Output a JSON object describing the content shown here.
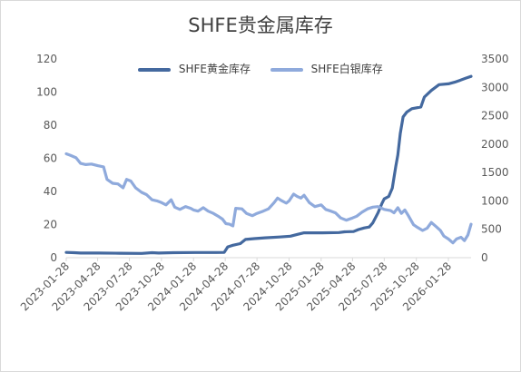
{
  "chart_data": {
    "type": "line",
    "title": "SHFE贵金属库存",
    "xlabel": "",
    "ylabel": "",
    "x_ticks": [
      "2023-01-28",
      "2023-04-28",
      "2023-07-28",
      "2023-10-28",
      "2024-01-28",
      "2024-04-28",
      "2024-07-28",
      "2024-10-28",
      "2025-01-28",
      "2025-04-28",
      "2025-07-28",
      "2025-10-28",
      "2026-01-28"
    ],
    "x_range": [
      "2023-01-28",
      "2026-04-03"
    ],
    "y_left": {
      "ticks": [
        0,
        20,
        40,
        60,
        80,
        100,
        120
      ],
      "range": [
        0,
        120
      ]
    },
    "y_right": {
      "ticks": [
        0,
        500,
        1000,
        1500,
        2000,
        2500,
        3000,
        3500
      ],
      "range": [
        0,
        3500
      ]
    },
    "grid": false,
    "legend_position": "top",
    "series": [
      {
        "name": "SHFE黄金库存",
        "axis": "left",
        "color": "#44699f",
        "points": [
          [
            "2023-01-28",
            3.2
          ],
          [
            "2023-02-20",
            3.0
          ],
          [
            "2023-03-10",
            2.8
          ],
          [
            "2023-05-01",
            2.8
          ],
          [
            "2023-07-01",
            2.7
          ],
          [
            "2023-09-01",
            2.6
          ],
          [
            "2023-10-01",
            3.0
          ],
          [
            "2023-10-20",
            2.8
          ],
          [
            "2023-12-01",
            3.0
          ],
          [
            "2024-02-01",
            3.1
          ],
          [
            "2024-04-01",
            3.1
          ],
          [
            "2024-04-25",
            3.2
          ],
          [
            "2024-05-05",
            6.5
          ],
          [
            "2024-05-20",
            7.5
          ],
          [
            "2024-06-10",
            8.5
          ],
          [
            "2024-06-25",
            11.0
          ],
          [
            "2024-07-20",
            11.5
          ],
          [
            "2024-08-20",
            12.0
          ],
          [
            "2024-10-01",
            12.5
          ],
          [
            "2024-11-01",
            13.0
          ],
          [
            "2024-11-20",
            14.0
          ],
          [
            "2024-12-10",
            15.0
          ],
          [
            "2025-02-01",
            15.0
          ],
          [
            "2025-03-20",
            15.2
          ],
          [
            "2025-04-05",
            15.6
          ],
          [
            "2025-05-01",
            15.8
          ],
          [
            "2025-05-15",
            17.0
          ],
          [
            "2025-06-01",
            18.0
          ],
          [
            "2025-06-15",
            18.5
          ],
          [
            "2025-06-25",
            21.0
          ],
          [
            "2025-07-10",
            27.0
          ],
          [
            "2025-07-22",
            33.0
          ],
          [
            "2025-07-28",
            35.5
          ],
          [
            "2025-08-10",
            37.0
          ],
          [
            "2025-08-20",
            42.0
          ],
          [
            "2025-08-30",
            55.0
          ],
          [
            "2025-09-05",
            62.0
          ],
          [
            "2025-09-12",
            75.0
          ],
          [
            "2025-09-20",
            85.0
          ],
          [
            "2025-10-01",
            88.0
          ],
          [
            "2025-10-15",
            90.0
          ],
          [
            "2025-11-10",
            91.0
          ],
          [
            "2025-11-20",
            97.0
          ],
          [
            "2025-12-10",
            101.0
          ],
          [
            "2026-01-01",
            104.5
          ],
          [
            "2026-01-28",
            105.0
          ],
          [
            "2026-02-15",
            106.0
          ],
          [
            "2026-03-01",
            107.0
          ],
          [
            "2026-03-20",
            108.5
          ],
          [
            "2026-04-03",
            109.5
          ]
        ]
      },
      {
        "name": "SHFE白银库存",
        "axis": "right",
        "color": "#8faadc",
        "points": [
          [
            "2023-01-28",
            1830
          ],
          [
            "2023-02-10",
            1800
          ],
          [
            "2023-02-25",
            1760
          ],
          [
            "2023-03-10",
            1660
          ],
          [
            "2023-03-25",
            1640
          ],
          [
            "2023-04-10",
            1650
          ],
          [
            "2023-04-28",
            1620
          ],
          [
            "2023-05-15",
            1600
          ],
          [
            "2023-05-25",
            1380
          ],
          [
            "2023-06-10",
            1310
          ],
          [
            "2023-06-25",
            1300
          ],
          [
            "2023-07-10",
            1230
          ],
          [
            "2023-07-20",
            1380
          ],
          [
            "2023-08-01",
            1350
          ],
          [
            "2023-08-15",
            1230
          ],
          [
            "2023-09-01",
            1150
          ],
          [
            "2023-09-15",
            1110
          ],
          [
            "2023-10-01",
            1020
          ],
          [
            "2023-10-15",
            1000
          ],
          [
            "2023-10-28",
            970
          ],
          [
            "2023-11-10",
            930
          ],
          [
            "2023-11-25",
            1020
          ],
          [
            "2023-12-05",
            890
          ],
          [
            "2023-12-20",
            850
          ],
          [
            "2024-01-05",
            900
          ],
          [
            "2024-01-20",
            870
          ],
          [
            "2024-01-28",
            840
          ],
          [
            "2024-02-10",
            820
          ],
          [
            "2024-02-25",
            880
          ],
          [
            "2024-03-10",
            820
          ],
          [
            "2024-03-25",
            780
          ],
          [
            "2024-04-10",
            720
          ],
          [
            "2024-04-20",
            680
          ],
          [
            "2024-04-30",
            600
          ],
          [
            "2024-05-10",
            590
          ],
          [
            "2024-05-20",
            560
          ],
          [
            "2024-05-28",
            870
          ],
          [
            "2024-06-15",
            860
          ],
          [
            "2024-06-28",
            780
          ],
          [
            "2024-07-15",
            740
          ],
          [
            "2024-07-28",
            780
          ],
          [
            "2024-08-15",
            820
          ],
          [
            "2024-08-30",
            860
          ],
          [
            "2024-09-15",
            970
          ],
          [
            "2024-09-25",
            1050
          ],
          [
            "2024-10-05",
            1010
          ],
          [
            "2024-10-20",
            960
          ],
          [
            "2024-10-28",
            1000
          ],
          [
            "2024-11-10",
            1120
          ],
          [
            "2024-11-20",
            1080
          ],
          [
            "2024-12-01",
            1050
          ],
          [
            "2024-12-10",
            1100
          ],
          [
            "2024-12-25",
            970
          ],
          [
            "2025-01-10",
            900
          ],
          [
            "2025-01-28",
            930
          ],
          [
            "2025-02-10",
            850
          ],
          [
            "2025-02-25",
            820
          ],
          [
            "2025-03-10",
            790
          ],
          [
            "2025-03-25",
            700
          ],
          [
            "2025-04-10",
            660
          ],
          [
            "2025-04-28",
            700
          ],
          [
            "2025-05-10",
            730
          ],
          [
            "2025-05-25",
            800
          ],
          [
            "2025-06-10",
            860
          ],
          [
            "2025-06-25",
            890
          ],
          [
            "2025-07-10",
            900
          ],
          [
            "2025-07-28",
            850
          ],
          [
            "2025-08-15",
            830
          ],
          [
            "2025-08-25",
            790
          ],
          [
            "2025-09-05",
            880
          ],
          [
            "2025-09-15",
            780
          ],
          [
            "2025-09-25",
            840
          ],
          [
            "2025-10-05",
            740
          ],
          [
            "2025-10-20",
            580
          ],
          [
            "2025-11-01",
            530
          ],
          [
            "2025-11-15",
            480
          ],
          [
            "2025-11-28",
            520
          ],
          [
            "2025-12-10",
            620
          ],
          [
            "2025-12-25",
            540
          ],
          [
            "2026-01-05",
            480
          ],
          [
            "2026-01-15",
            380
          ],
          [
            "2026-01-28",
            330
          ],
          [
            "2026-02-10",
            260
          ],
          [
            "2026-02-20",
            330
          ],
          [
            "2026-03-05",
            360
          ],
          [
            "2026-03-15",
            300
          ],
          [
            "2026-03-25",
            400
          ],
          [
            "2026-04-03",
            590
          ]
        ]
      }
    ]
  }
}
